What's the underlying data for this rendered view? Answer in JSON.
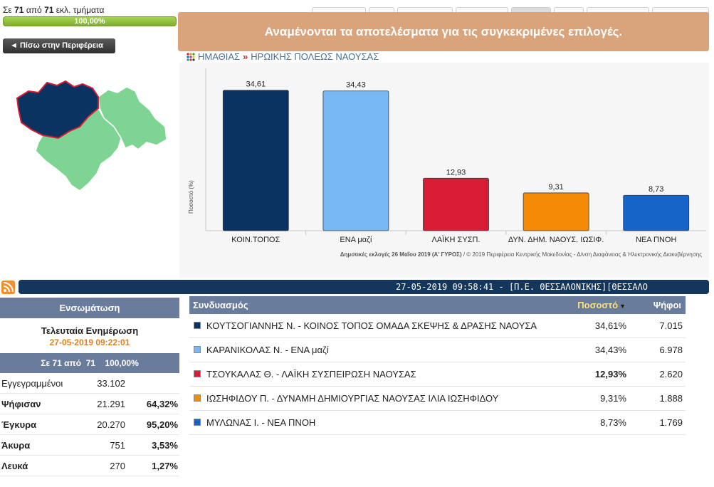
{
  "progress": {
    "caption_prefix": "Σε",
    "counted": "71",
    "caption_mid": "από",
    "total": "71",
    "caption_suffix": "εκλ. τμήματα",
    "percent_label": "100,00%",
    "fraction": 1.0,
    "color": "#8ab83a"
  },
  "back_button": {
    "label": "◄ Πίσω στην Περιφέρεια"
  },
  "banner": {
    "text": "Αναμένονται τα αποτελέσματα για τις συγκεκριμένες επιλογές.",
    "color": "#d9a47b"
  },
  "breadcrumb": {
    "region": "ΗΜΑΘΙΑΣ",
    "separator": "»",
    "municipality": "ΗΡΩΙΚΗΣ ΠΟΛΕΩΣ ΝΑΟΥΣΑΣ"
  },
  "chart_data": {
    "type": "bar",
    "ylabel": "Ποσοστό (%)",
    "categories": [
      "ΚΟΙΝ.ΤΟΠΟΣ",
      "ΕΝΑ μαζί",
      "ΛΑΪΚΗ ΣΥΣΠ.",
      "ΔΥΝ. ΔΗΜ. ΝΑΟΥΣ. ΙΩΣΙΦ.",
      "ΝΕΑ ΠΝΟΗ"
    ],
    "values": [
      34.61,
      34.43,
      12.93,
      9.31,
      8.73
    ],
    "value_labels": [
      "34,61",
      "34,43",
      "12,93",
      "9,31",
      "8,73"
    ],
    "colors": [
      "#0a3361",
      "#78b9f5",
      "#d81c35",
      "#f58a07",
      "#1565c8"
    ],
    "ylim": [
      0,
      40
    ],
    "grid": false
  },
  "chart_credit": {
    "bold_part": "Δημοτικές εκλογές 26 Μαΐου 2019 (Α' ΓΥΡΟΣ)",
    "rest": " / © 2019 Περιφέρεια Κεντρικής Μακεδονίας - Δ/νση Διαφάνειας & Ηλεκτρονικής Διακυβέρνησης"
  },
  "ticker": {
    "text": "27-05-2019 09:58:41 - [Π.Ε. ΘΕΣΣΑΛΟΝΙΚΗΣ][ΘΕΣΣΑΛΟ"
  },
  "stats": {
    "header": "Ενσωμάτωση",
    "update_label": "Τελευταία Ενημέρωση",
    "update_datetime": "27-05-2019 09:22:01",
    "summary": "Σε 71 από  71    100,00%",
    "rows": [
      {
        "name": "Εγγεγραμμένοι",
        "value": "33.102",
        "pct": "",
        "bold": false
      },
      {
        "name": "Ψήφισαν",
        "value": "21.291",
        "pct": "64,32%",
        "bold": true
      },
      {
        "name": "Έγκυρα",
        "value": "20.270",
        "pct": "95,20%",
        "bold": true
      },
      {
        "name": "Άκυρα",
        "value": "751",
        "pct": "3,53%",
        "bold": true
      },
      {
        "name": "Λευκά",
        "value": "270",
        "pct": "1,27%",
        "bold": true
      }
    ]
  },
  "results": {
    "header": {
      "combination": "Συνδυασμός",
      "percent": "Ποσοστό",
      "votes": "Ψήφοι"
    },
    "rows": [
      {
        "name": "ΚΟΥΤΣΟΓΙΑΝΝΗΣ Ν. - ΚΟΙΝΟΣ ΤΟΠΟΣ ΟΜΑΔΑ ΣΚΕΨΗΣ & ΔΡΑΣΗΣ ΝΑΟΥΣΑ",
        "pct": "34,61%",
        "votes": "7.015",
        "color": "#0a3361",
        "bold_pct": false
      },
      {
        "name": "ΚΑΡΑΝΙΚΟΛΑΣ Ν. - ΕΝΑ μαζί",
        "pct": "34,43%",
        "votes": "6.978",
        "color": "#78b9f5",
        "bold_pct": false
      },
      {
        "name": "ΤΣΟΥΚΑΛΑΣ Θ. - ΛΑΪΚΗ ΣΥΣΠΕΙΡΩΣΗ ΝΑΟΥΣΑΣ",
        "pct": "12,93%",
        "votes": "2.620",
        "color": "#d81c35",
        "bold_pct": true
      },
      {
        "name": "ΙΩΣΗΦΙΔΟΥ Π. - ΔΥΝΑΜΗ ΔΗΜΙΟΥΡΓΙΑΣ ΝΑΟΥΣΑΣ ΙΛΙΑ ΙΩΣΗΦΙΔΟΥ",
        "pct": "9,31%",
        "votes": "1.888",
        "color": "#f58a07",
        "bold_pct": false
      },
      {
        "name": "ΜΥΛΩΝΑΣ Ι. - ΝΕΑ ΠΝΟΗ",
        "pct": "8,73%",
        "votes": "1.769",
        "color": "#1565c8",
        "bold_pct": false
      }
    ]
  },
  "map": {
    "selected_color": "#0a3361",
    "other_color": "#7ed493",
    "selected_border": "#d81c35"
  }
}
